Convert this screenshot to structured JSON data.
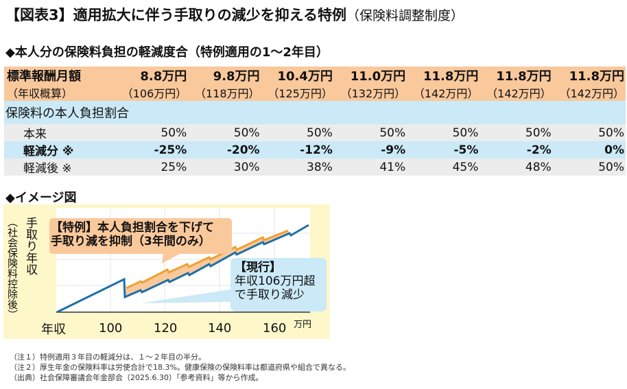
{
  "title": {
    "main": "【図表3】適用拡大に伴う手取りの減少を抑える特例",
    "sub": "（保険料調整制度）"
  },
  "table_heading": "◆本人分の保険料負担の軽減度合（特例適用の1～2年目）",
  "table": {
    "header1_label": "標準報酬月額",
    "header2_label": "（年収概算）",
    "monthly": [
      "8.8万円",
      "9.8万円",
      "10.4万円",
      "11.0万円",
      "11.8万円",
      "11.8万円",
      "11.8万円"
    ],
    "annual": [
      "（106万円）",
      "（118万円）",
      "（125万円）",
      "（132万円）",
      "（142万円）",
      "（142万円）",
      "（142万円）"
    ],
    "section_label": "保険料の本人負担割合",
    "rows": [
      {
        "label": "本来",
        "values": [
          "50%",
          "50%",
          "50%",
          "50%",
          "50%",
          "50%",
          "50%"
        ]
      },
      {
        "label": "軽減分 ※",
        "values": [
          "-25%",
          "-20%",
          "-12%",
          "-9%",
          "-5%",
          "-2%",
          "0%"
        ]
      },
      {
        "label": "軽減後 ※",
        "values": [
          "25%",
          "30%",
          "38%",
          "41%",
          "45%",
          "48%",
          "50%"
        ]
      }
    ]
  },
  "image_heading": "◆イメージ図",
  "chart": {
    "ylabel": "手取り年収",
    "ylabel_sub": "（社会保険料控除後）",
    "xlabel": "年収",
    "xticks": [
      "100",
      "120",
      "140",
      "160"
    ],
    "xunit": "万円",
    "callout_special": [
      "【特例】本人負担割合を下げて",
      "手取り減を抑制（3年間のみ）"
    ],
    "callout_current": [
      "【現行】",
      "年収106万円超",
      "で手取り減少"
    ],
    "colors": {
      "current": "#1f6fa8",
      "special": "#f0a030",
      "background": "#fdf7c9"
    }
  },
  "notes": [
    "（注１）特例適用３年目の軽減分は、１～２年目の半分。",
    "（注２）厚生年金の保険料率は労使合計で18.3%。健康保険の保険料率は都道府県や組合で異なる。",
    "（出典）社会保障審議会年金部会（2025.6.30）「参考資料」等から作成。"
  ]
}
